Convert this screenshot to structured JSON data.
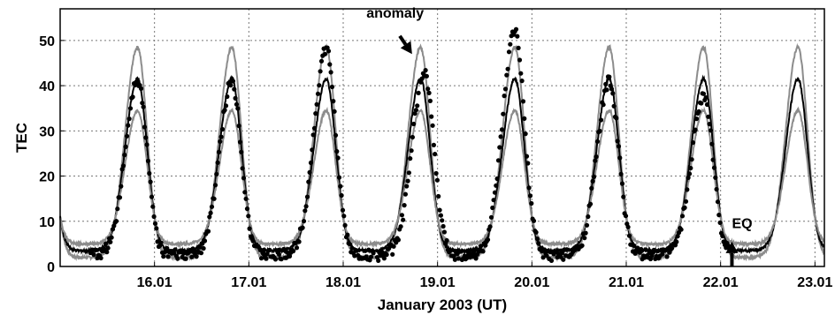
{
  "chart_data": {
    "type": "scatter",
    "title": "",
    "xlabel": "January 2003 (UT)",
    "ylabel": "TEC",
    "xlim": [
      15.0,
      23.1
    ],
    "ylim": [
      0,
      57
    ],
    "x_ticks": [
      16.0,
      17.0,
      18.0,
      19.0,
      20.0,
      21.0,
      22.0,
      23.0
    ],
    "x_tick_labels": [
      "16.01",
      "17.01",
      "18.01",
      "19.01",
      "20.01",
      "21.01",
      "22.01",
      "23.01"
    ],
    "y_ticks": [
      0,
      10,
      20,
      30,
      40,
      50
    ],
    "y_tick_labels": [
      "0",
      "10",
      "20",
      "30",
      "40",
      "50"
    ],
    "grid": true,
    "reference_curves": [
      {
        "peak": 48.5,
        "trough": 2.0,
        "color": "#8c8c8c",
        "width": 2
      },
      {
        "peak": 41.5,
        "trough": 3.5,
        "color": "#000000",
        "width": 2
      },
      {
        "peak": 34.5,
        "trough": 5.0,
        "color": "#8c8c8c",
        "width": 2
      }
    ],
    "observed_peaks": [
      {
        "day": 15.82,
        "peak": 41.5
      },
      {
        "day": 16.82,
        "peak": 41.0
      },
      {
        "day": 17.82,
        "peak": 48.0
      },
      {
        "day": 18.86,
        "peak": 43.0
      },
      {
        "day": 19.82,
        "peak": 52.0
      },
      {
        "day": 20.82,
        "peak": 41.0
      },
      {
        "day": 21.82,
        "peak": 38.0
      }
    ],
    "observed_end_day": 22.1,
    "annotations": [
      {
        "text": "anomaly",
        "x": 18.55,
        "y": 55,
        "arrow_to": [
          18.73,
          47
        ]
      },
      {
        "text": "EQ",
        "x": 22.12,
        "y": 8.5,
        "arrow_from": [
          22.12,
          0
        ],
        "arrow_to": [
          22.12,
          5.5
        ]
      }
    ]
  }
}
